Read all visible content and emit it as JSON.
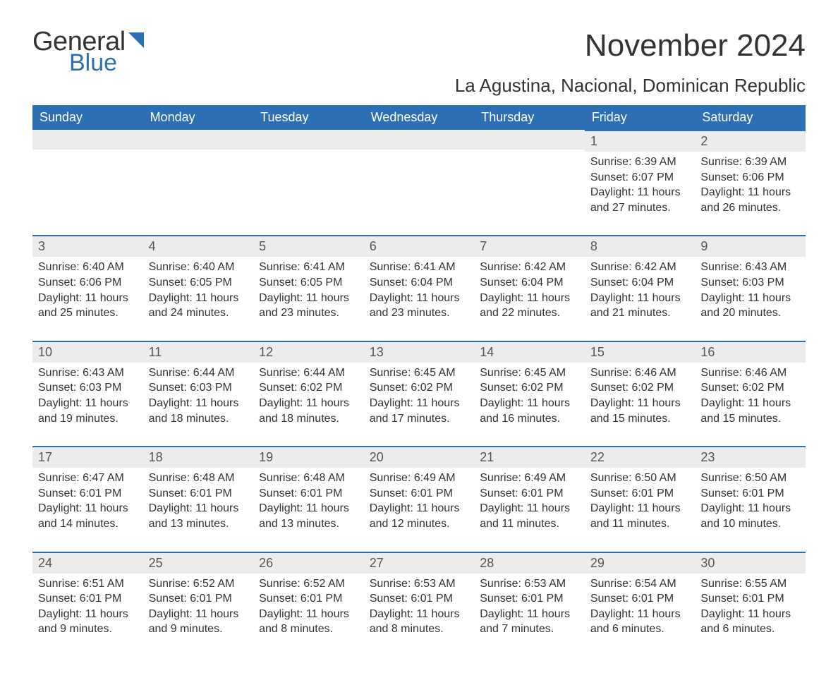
{
  "logo": {
    "word1": "General",
    "word2": "Blue",
    "accent_color": "#2d6fb5"
  },
  "title": "November 2024",
  "location": "La Agustina, Nacional, Dominican Republic",
  "colors": {
    "header_bg": "#2d6fb5",
    "header_text": "#ffffff",
    "daynum_bg": "#ececec",
    "daynum_border_top": "#2d6fb5",
    "body_text": "#333333",
    "page_bg": "#ffffff"
  },
  "typography": {
    "title_fontsize": 44,
    "location_fontsize": 26,
    "dow_fontsize": 18,
    "daynum_fontsize": 18,
    "cell_fontsize": 16
  },
  "days_of_week": [
    "Sunday",
    "Monday",
    "Tuesday",
    "Wednesday",
    "Thursday",
    "Friday",
    "Saturday"
  ],
  "weeks": [
    [
      null,
      null,
      null,
      null,
      null,
      {
        "n": "1",
        "sunrise": "Sunrise: 6:39 AM",
        "sunset": "Sunset: 6:07 PM",
        "daylight": "Daylight: 11 hours and 27 minutes."
      },
      {
        "n": "2",
        "sunrise": "Sunrise: 6:39 AM",
        "sunset": "Sunset: 6:06 PM",
        "daylight": "Daylight: 11 hours and 26 minutes."
      }
    ],
    [
      {
        "n": "3",
        "sunrise": "Sunrise: 6:40 AM",
        "sunset": "Sunset: 6:06 PM",
        "daylight": "Daylight: 11 hours and 25 minutes."
      },
      {
        "n": "4",
        "sunrise": "Sunrise: 6:40 AM",
        "sunset": "Sunset: 6:05 PM",
        "daylight": "Daylight: 11 hours and 24 minutes."
      },
      {
        "n": "5",
        "sunrise": "Sunrise: 6:41 AM",
        "sunset": "Sunset: 6:05 PM",
        "daylight": "Daylight: 11 hours and 23 minutes."
      },
      {
        "n": "6",
        "sunrise": "Sunrise: 6:41 AM",
        "sunset": "Sunset: 6:04 PM",
        "daylight": "Daylight: 11 hours and 23 minutes."
      },
      {
        "n": "7",
        "sunrise": "Sunrise: 6:42 AM",
        "sunset": "Sunset: 6:04 PM",
        "daylight": "Daylight: 11 hours and 22 minutes."
      },
      {
        "n": "8",
        "sunrise": "Sunrise: 6:42 AM",
        "sunset": "Sunset: 6:04 PM",
        "daylight": "Daylight: 11 hours and 21 minutes."
      },
      {
        "n": "9",
        "sunrise": "Sunrise: 6:43 AM",
        "sunset": "Sunset: 6:03 PM",
        "daylight": "Daylight: 11 hours and 20 minutes."
      }
    ],
    [
      {
        "n": "10",
        "sunrise": "Sunrise: 6:43 AM",
        "sunset": "Sunset: 6:03 PM",
        "daylight": "Daylight: 11 hours and 19 minutes."
      },
      {
        "n": "11",
        "sunrise": "Sunrise: 6:44 AM",
        "sunset": "Sunset: 6:03 PM",
        "daylight": "Daylight: 11 hours and 18 minutes."
      },
      {
        "n": "12",
        "sunrise": "Sunrise: 6:44 AM",
        "sunset": "Sunset: 6:02 PM",
        "daylight": "Daylight: 11 hours and 18 minutes."
      },
      {
        "n": "13",
        "sunrise": "Sunrise: 6:45 AM",
        "sunset": "Sunset: 6:02 PM",
        "daylight": "Daylight: 11 hours and 17 minutes."
      },
      {
        "n": "14",
        "sunrise": "Sunrise: 6:45 AM",
        "sunset": "Sunset: 6:02 PM",
        "daylight": "Daylight: 11 hours and 16 minutes."
      },
      {
        "n": "15",
        "sunrise": "Sunrise: 6:46 AM",
        "sunset": "Sunset: 6:02 PM",
        "daylight": "Daylight: 11 hours and 15 minutes."
      },
      {
        "n": "16",
        "sunrise": "Sunrise: 6:46 AM",
        "sunset": "Sunset: 6:02 PM",
        "daylight": "Daylight: 11 hours and 15 minutes."
      }
    ],
    [
      {
        "n": "17",
        "sunrise": "Sunrise: 6:47 AM",
        "sunset": "Sunset: 6:01 PM",
        "daylight": "Daylight: 11 hours and 14 minutes."
      },
      {
        "n": "18",
        "sunrise": "Sunrise: 6:48 AM",
        "sunset": "Sunset: 6:01 PM",
        "daylight": "Daylight: 11 hours and 13 minutes."
      },
      {
        "n": "19",
        "sunrise": "Sunrise: 6:48 AM",
        "sunset": "Sunset: 6:01 PM",
        "daylight": "Daylight: 11 hours and 13 minutes."
      },
      {
        "n": "20",
        "sunrise": "Sunrise: 6:49 AM",
        "sunset": "Sunset: 6:01 PM",
        "daylight": "Daylight: 11 hours and 12 minutes."
      },
      {
        "n": "21",
        "sunrise": "Sunrise: 6:49 AM",
        "sunset": "Sunset: 6:01 PM",
        "daylight": "Daylight: 11 hours and 11 minutes."
      },
      {
        "n": "22",
        "sunrise": "Sunrise: 6:50 AM",
        "sunset": "Sunset: 6:01 PM",
        "daylight": "Daylight: 11 hours and 11 minutes."
      },
      {
        "n": "23",
        "sunrise": "Sunrise: 6:50 AM",
        "sunset": "Sunset: 6:01 PM",
        "daylight": "Daylight: 11 hours and 10 minutes."
      }
    ],
    [
      {
        "n": "24",
        "sunrise": "Sunrise: 6:51 AM",
        "sunset": "Sunset: 6:01 PM",
        "daylight": "Daylight: 11 hours and 9 minutes."
      },
      {
        "n": "25",
        "sunrise": "Sunrise: 6:52 AM",
        "sunset": "Sunset: 6:01 PM",
        "daylight": "Daylight: 11 hours and 9 minutes."
      },
      {
        "n": "26",
        "sunrise": "Sunrise: 6:52 AM",
        "sunset": "Sunset: 6:01 PM",
        "daylight": "Daylight: 11 hours and 8 minutes."
      },
      {
        "n": "27",
        "sunrise": "Sunrise: 6:53 AM",
        "sunset": "Sunset: 6:01 PM",
        "daylight": "Daylight: 11 hours and 8 minutes."
      },
      {
        "n": "28",
        "sunrise": "Sunrise: 6:53 AM",
        "sunset": "Sunset: 6:01 PM",
        "daylight": "Daylight: 11 hours and 7 minutes."
      },
      {
        "n": "29",
        "sunrise": "Sunrise: 6:54 AM",
        "sunset": "Sunset: 6:01 PM",
        "daylight": "Daylight: 11 hours and 6 minutes."
      },
      {
        "n": "30",
        "sunrise": "Sunrise: 6:55 AM",
        "sunset": "Sunset: 6:01 PM",
        "daylight": "Daylight: 11 hours and 6 minutes."
      }
    ]
  ]
}
